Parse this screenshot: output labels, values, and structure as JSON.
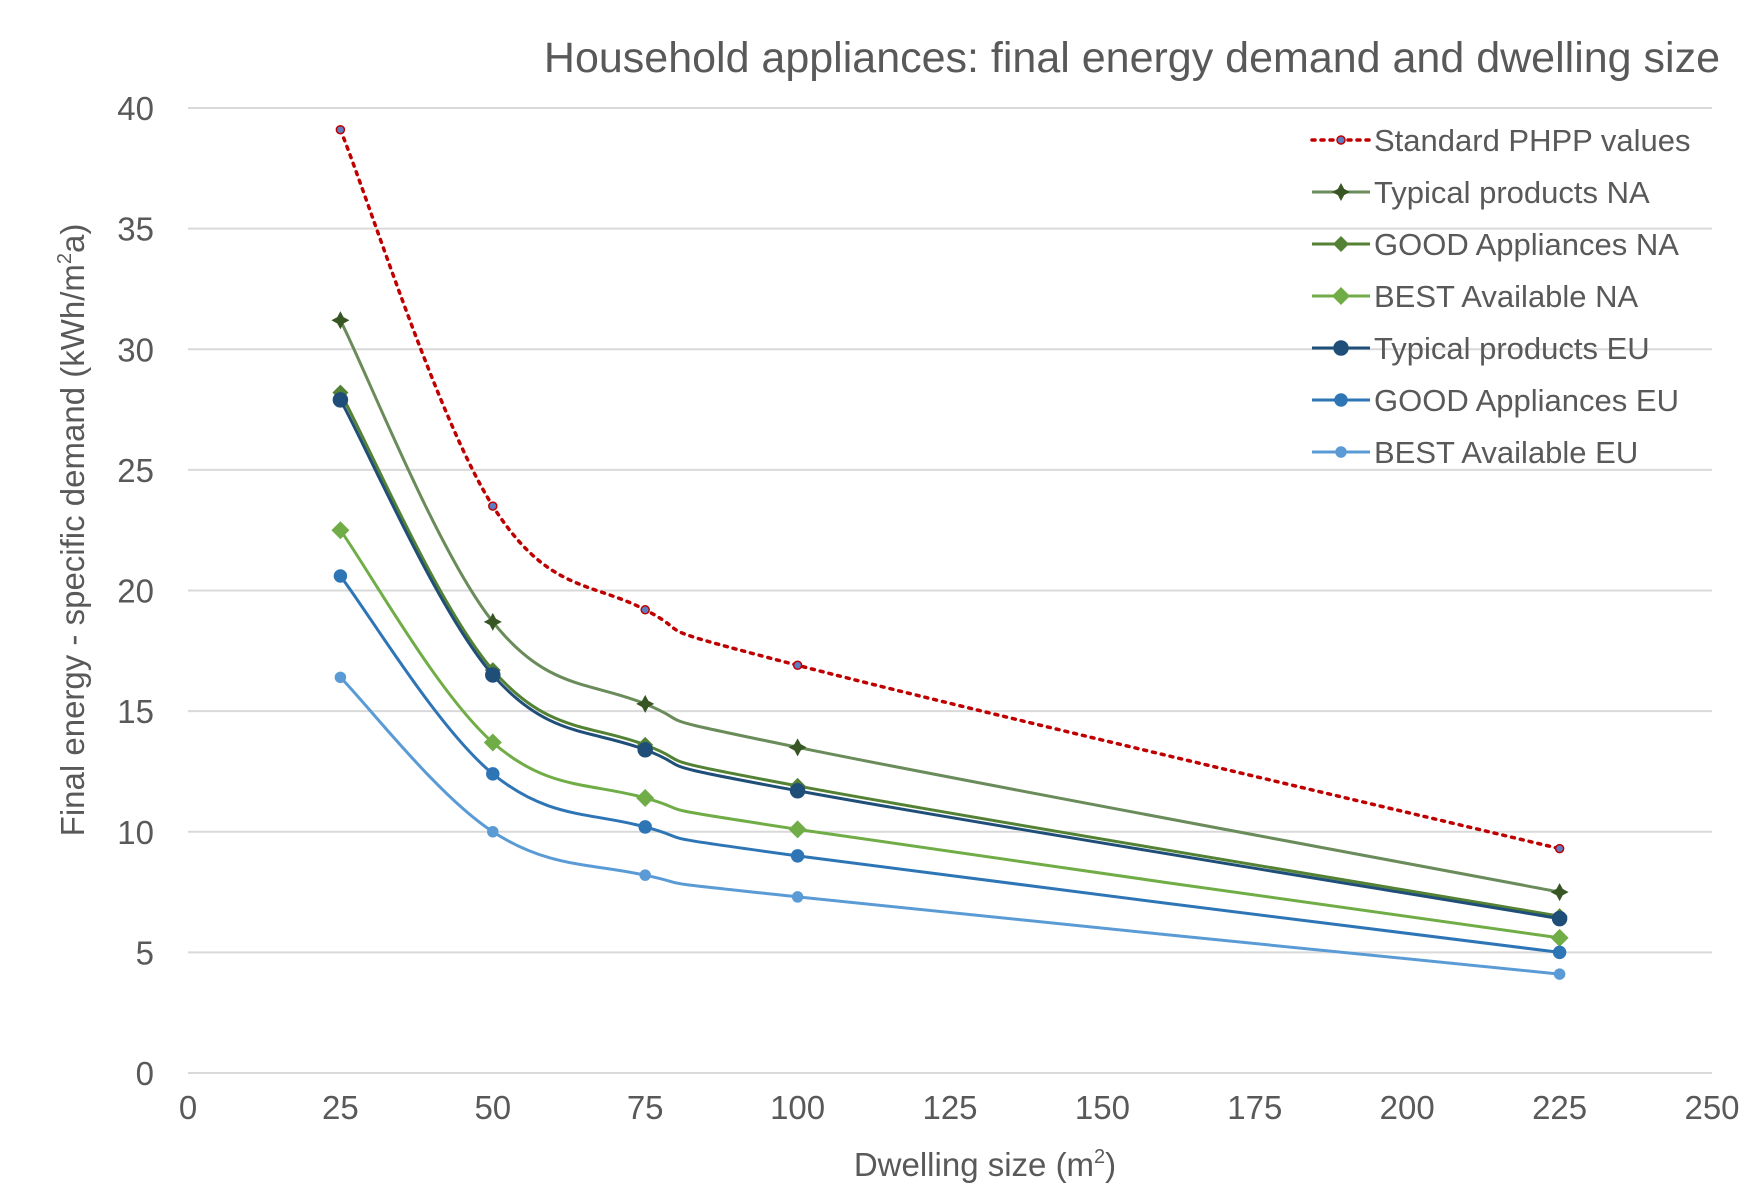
{
  "chart_data": {
    "type": "line",
    "title": "Household appliances: final energy demand and dwelling size",
    "xlabel": {
      "text": "Dwelling size (m",
      "sup": "2",
      "tail": ")"
    },
    "ylabel": {
      "text": "Final energy - specific demand (kWh/m",
      "sup": "2",
      "tail": "a)"
    },
    "xlim": [
      0,
      250
    ],
    "ylim": [
      0,
      40
    ],
    "xticks": [
      "0",
      "25",
      "50",
      "75",
      "100",
      "125",
      "150",
      "175",
      "200",
      "225",
      "250"
    ],
    "yticks": [
      "0",
      "5",
      "10",
      "15",
      "20",
      "25",
      "30",
      "35",
      "40"
    ],
    "grid": "horizontal",
    "legend_position": "top-right",
    "x": [
      25,
      50,
      75,
      100,
      225
    ],
    "series": [
      {
        "name": "Standard PHPP values",
        "values": [
          39.1,
          23.5,
          19.2,
          16.9,
          9.3
        ],
        "color": "#c00000",
        "marker": "circle",
        "dash": true
      },
      {
        "name": "Typical products NA",
        "values": [
          31.2,
          18.7,
          15.3,
          13.5,
          7.5
        ],
        "color": "#6a8b5a",
        "marker": "star",
        "markerColor": "#375623",
        "dash": false
      },
      {
        "name": "GOOD Appliances NA",
        "values": [
          28.2,
          16.7,
          13.6,
          11.9,
          6.5
        ],
        "color": "#548235",
        "marker": "diamond",
        "dash": false
      },
      {
        "name": "BEST Available NA",
        "values": [
          22.5,
          13.7,
          11.4,
          10.1,
          5.6
        ],
        "color": "#70ad47",
        "marker": "diamond",
        "dash": false
      },
      {
        "name": "Typical products EU",
        "values": [
          27.9,
          16.5,
          13.4,
          11.7,
          6.4
        ],
        "color": "#1f4e79",
        "marker": "circle",
        "dash": false
      },
      {
        "name": "GOOD Appliances EU",
        "values": [
          20.6,
          12.4,
          10.2,
          9.0,
          5.0
        ],
        "color": "#2e75b6",
        "marker": "circle",
        "dash": false
      },
      {
        "name": "BEST Available EU",
        "values": [
          16.4,
          10.0,
          8.2,
          7.3,
          4.1
        ],
        "color": "#5b9bd5",
        "marker": "circle",
        "dash": false
      }
    ]
  }
}
